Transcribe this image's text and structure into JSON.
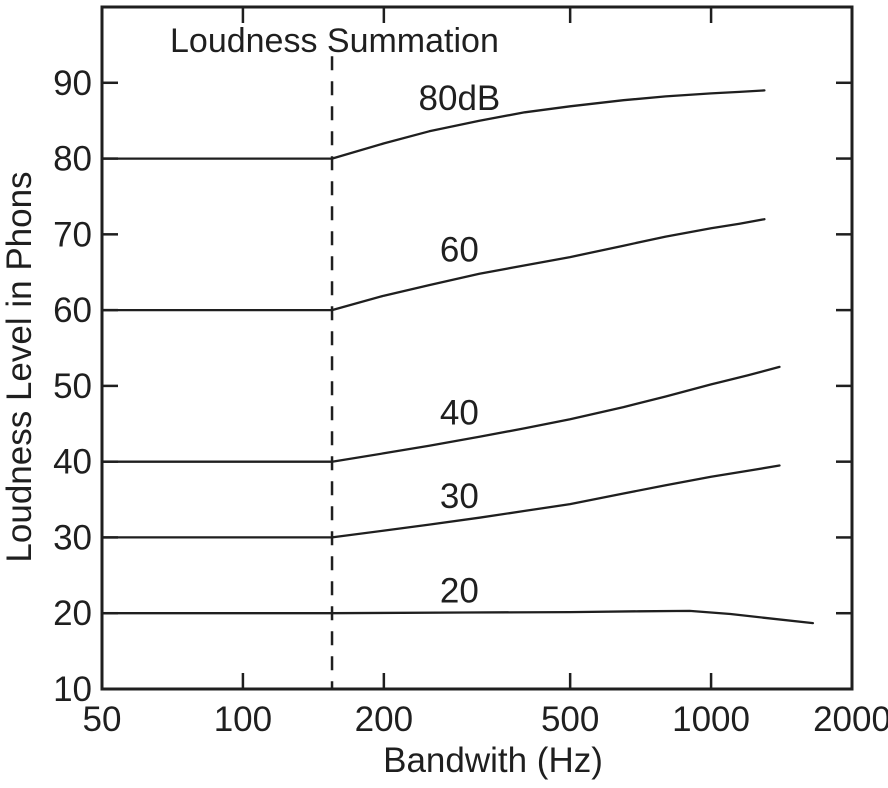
{
  "figure": {
    "title": "Loudness Summation",
    "x_axis_label": "Bandwith (Hz)",
    "y_axis_label": "Loudness Level in Phons"
  },
  "chart_data": {
    "type": "line",
    "title": "Loudness Summation",
    "xlabel": "Bandwith (Hz)",
    "ylabel": "Loudness Level in Phons",
    "x_scale": "log",
    "xlim": [
      50,
      2000
    ],
    "ylim": [
      10,
      100
    ],
    "grid": false,
    "background": "#ffffff",
    "frame_color": "#1f1f1f",
    "text_color": "#1f1f1f",
    "x_ticks": [
      {
        "value": 50,
        "label": "50",
        "tick_mark": false
      },
      {
        "value": 100,
        "label": "100",
        "tick_mark": true
      },
      {
        "value": 200,
        "label": "200",
        "tick_mark": true
      },
      {
        "value": 500,
        "label": "500",
        "tick_mark": true
      },
      {
        "value": 1000,
        "label": "1000",
        "tick_mark": true
      },
      {
        "value": 2000,
        "label": "2000",
        "tick_mark": false
      }
    ],
    "y_ticks": [
      {
        "value": 10,
        "label": "10",
        "tick_mark": false
      },
      {
        "value": 20,
        "label": "20",
        "tick_mark": true
      },
      {
        "value": 30,
        "label": "30",
        "tick_mark": true
      },
      {
        "value": 40,
        "label": "40",
        "tick_mark": true
      },
      {
        "value": 50,
        "label": "50",
        "tick_mark": true
      },
      {
        "value": 60,
        "label": "60",
        "tick_mark": true
      },
      {
        "value": 70,
        "label": "70",
        "tick_mark": true
      },
      {
        "value": 80,
        "label": "80",
        "tick_mark": true
      },
      {
        "value": 90,
        "label": "90",
        "tick_mark": true
      }
    ],
    "critical_band_line": {
      "x": 155,
      "style": "dashed",
      "y_top": 93.5,
      "y_bottom": 10
    },
    "series": [
      {
        "label": "80dB",
        "label_at": [
          290,
          88
        ],
        "points": [
          [
            50,
            80
          ],
          [
            155,
            80
          ],
          [
            200,
            82
          ],
          [
            250,
            83.6
          ],
          [
            320,
            85
          ],
          [
            400,
            86.1
          ],
          [
            500,
            86.9
          ],
          [
            650,
            87.7
          ],
          [
            800,
            88.2
          ],
          [
            1000,
            88.6
          ],
          [
            1150,
            88.8
          ],
          [
            1300,
            89
          ]
        ]
      },
      {
        "label": "60",
        "label_at": [
          290,
          68
        ],
        "points": [
          [
            50,
            60
          ],
          [
            155,
            60
          ],
          [
            200,
            61.9
          ],
          [
            250,
            63.3
          ],
          [
            320,
            64.8
          ],
          [
            400,
            65.9
          ],
          [
            500,
            67
          ],
          [
            650,
            68.5
          ],
          [
            800,
            69.7
          ],
          [
            1000,
            70.8
          ],
          [
            1150,
            71.4
          ],
          [
            1300,
            72
          ]
        ]
      },
      {
        "label": "40",
        "label_at": [
          290,
          46.5
        ],
        "points": [
          [
            50,
            40
          ],
          [
            155,
            40
          ],
          [
            200,
            41.1
          ],
          [
            250,
            42.1
          ],
          [
            320,
            43.3
          ],
          [
            400,
            44.4
          ],
          [
            500,
            45.6
          ],
          [
            650,
            47.2
          ],
          [
            800,
            48.6
          ],
          [
            1000,
            50.2
          ],
          [
            1200,
            51.4
          ],
          [
            1400,
            52.5
          ]
        ]
      },
      {
        "label": "30",
        "label_at": [
          290,
          35.5
        ],
        "points": [
          [
            50,
            30
          ],
          [
            155,
            30
          ],
          [
            200,
            30.9
          ],
          [
            250,
            31.7
          ],
          [
            320,
            32.6
          ],
          [
            400,
            33.5
          ],
          [
            500,
            34.4
          ],
          [
            650,
            35.8
          ],
          [
            800,
            36.9
          ],
          [
            1000,
            38
          ],
          [
            1200,
            38.8
          ],
          [
            1400,
            39.5
          ]
        ]
      },
      {
        "label": "20",
        "label_at": [
          290,
          23
        ],
        "points": [
          [
            50,
            20
          ],
          [
            155,
            20
          ],
          [
            300,
            20.1
          ],
          [
            500,
            20.15
          ],
          [
            700,
            20.25
          ],
          [
            900,
            20.3
          ],
          [
            1100,
            19.9
          ],
          [
            1300,
            19.4
          ],
          [
            1650,
            18.7
          ]
        ]
      }
    ]
  }
}
